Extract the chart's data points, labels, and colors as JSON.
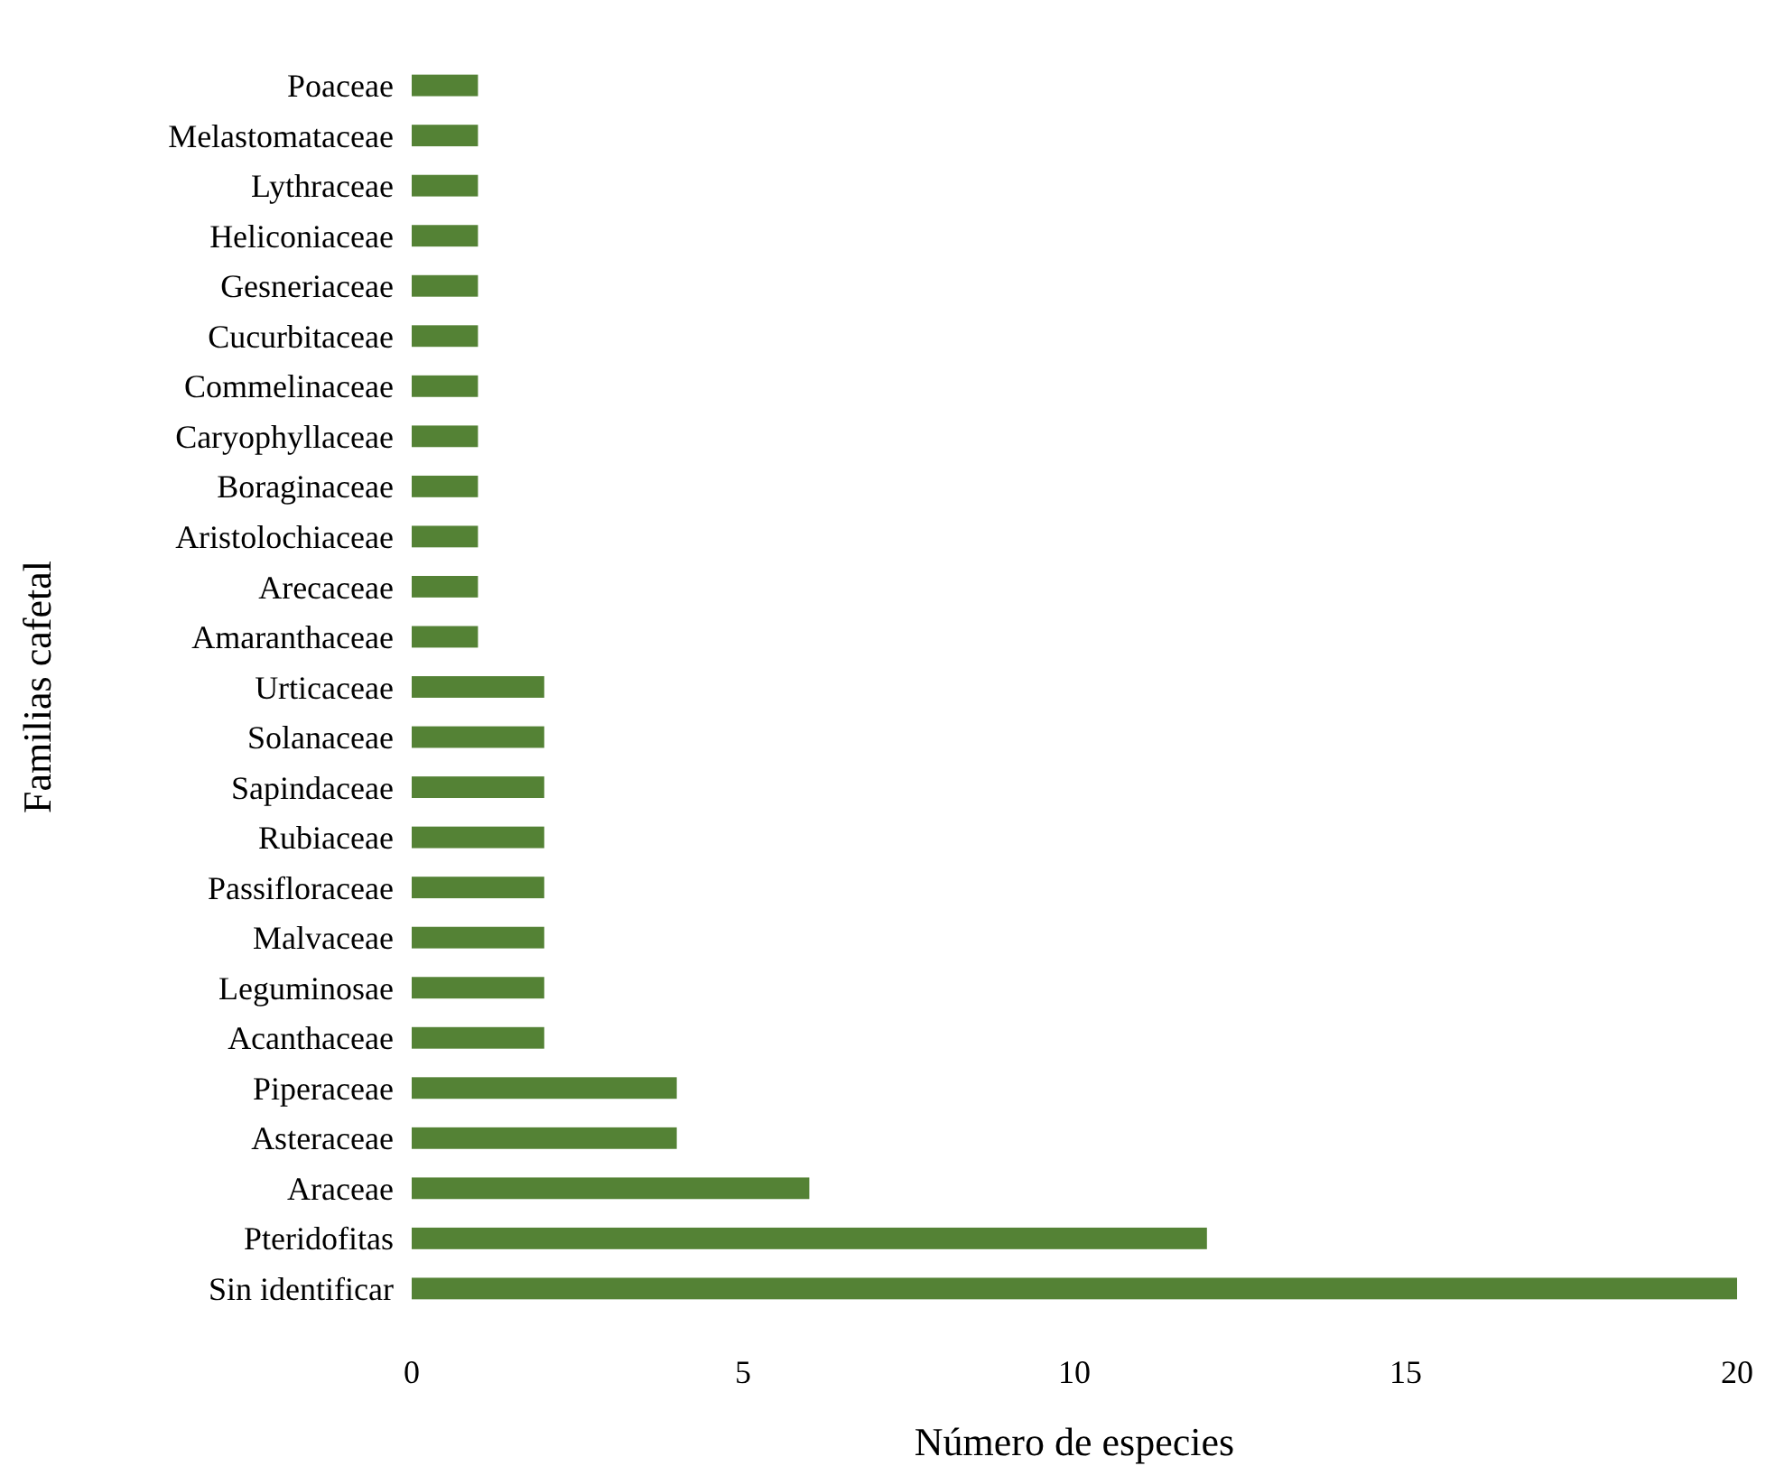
{
  "chart_data": {
    "type": "bar",
    "orientation": "horizontal",
    "xlabel": "Número de especies",
    "ylabel": "Familias cafetal",
    "categories": [
      "Poaceae",
      "Melastomataceae",
      "Lythraceae",
      "Heliconiaceae",
      "Gesneriaceae",
      "Cucurbitaceae",
      "Commelinaceae",
      "Caryophyllaceae",
      "Boraginaceae",
      "Aristolochiaceae",
      "Arecaceae",
      "Amaranthaceae",
      "Urticaceae",
      "Solanaceae",
      "Sapindaceae",
      "Rubiaceae",
      "Passifloraceae",
      "Malvaceae",
      "Leguminosae",
      "Acanthaceae",
      "Piperaceae",
      "Asteraceae",
      "Araceae",
      "Pteridofitas",
      "Sin identificar"
    ],
    "values": [
      1,
      1,
      1,
      1,
      1,
      1,
      1,
      1,
      1,
      1,
      1,
      1,
      2,
      2,
      2,
      2,
      2,
      2,
      2,
      2,
      4,
      4,
      6,
      12,
      20
    ],
    "color": "#548235",
    "xlim": [
      0,
      20
    ],
    "xticks": [
      0,
      5,
      10,
      15,
      20
    ],
    "grid": false
  }
}
